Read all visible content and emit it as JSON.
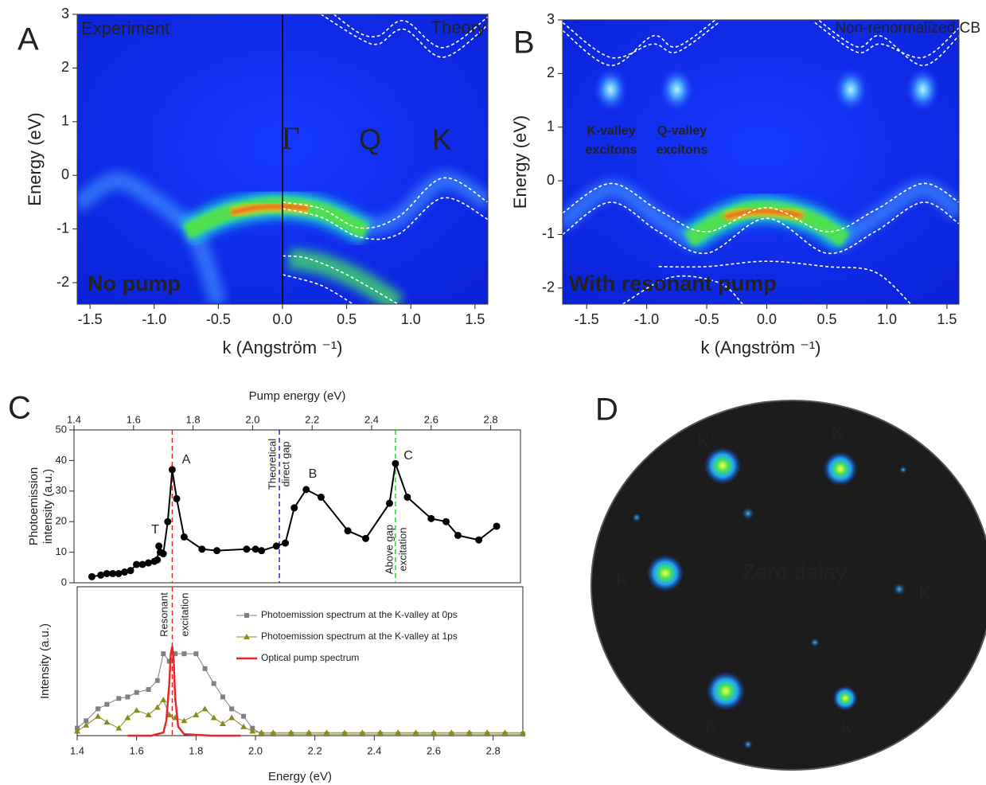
{
  "chart_data": [
    {
      "type": "image",
      "panel": "A",
      "xlabel": "k (Angström ⁻¹)",
      "ylabel": "Energy (eV)",
      "xlim": [
        -1.6,
        1.6
      ],
      "ylim": [
        -2.4,
        3
      ],
      "xticks": [
        -1.5,
        {
          "value": -1,
          "label": "-1.0"
        },
        -0.5,
        {
          "value": 0,
          "label": "0.0"
        },
        0.5,
        {
          "value": 1,
          "label": "1.0"
        },
        1.5
      ],
      "yticks": [
        -2,
        -1,
        0,
        1,
        2,
        3
      ],
      "annotations": [
        "Experiment",
        "Theory",
        "Γ",
        "Q",
        "K",
        "No pump"
      ]
    },
    {
      "type": "image",
      "panel": "B",
      "xlabel": "k (Angström ⁻¹)",
      "ylabel": "Energy (eV)",
      "xlim": [
        -1.7,
        1.6
      ],
      "ylim": [
        -2.3,
        3
      ],
      "xticks": [
        -1.5,
        {
          "value": -1,
          "label": "-1.0"
        },
        -0.5,
        {
          "value": 0,
          "label": "0.0"
        },
        0.5,
        {
          "value": 1,
          "label": "1.0"
        },
        1.5
      ],
      "yticks": [
        -2,
        -1,
        0,
        1,
        2,
        3
      ],
      "annotations": [
        "Non-renormalized CB",
        "K-valley",
        "excitons",
        "Q-valley",
        "excitons",
        "With resonant pump"
      ]
    },
    {
      "type": "line",
      "panel": "C",
      "xlabel": "Pump energy (eV)",
      "ylabel": [
        "Photoemission",
        "intensity (a.u.)"
      ],
      "xlim": [
        1.4,
        2.9
      ],
      "ylim": [
        0,
        50
      ],
      "xticks": [
        1.4,
        1.6,
        1.8,
        {
          "value": 2,
          "label": "2.0"
        },
        2.2,
        2.4,
        2.6,
        2.8
      ],
      "yticks": [
        0,
        10,
        20,
        30,
        40,
        50
      ],
      "series": [
        {
          "color": "#000000",
          "x": [
            1.46,
            1.49,
            1.51,
            1.53,
            1.55,
            1.57,
            1.59,
            1.61,
            1.63,
            1.65,
            1.67,
            1.68,
            1.685,
            1.69,
            1.7,
            1.715,
            1.73,
            1.745,
            1.77,
            1.83,
            1.88,
            1.98,
            2.01,
            2.03,
            2.08,
            2.11,
            2.14,
            2.18,
            2.23,
            2.32,
            2.38,
            2.46,
            2.48,
            2.52,
            2.6,
            2.65,
            2.69,
            2.76,
            2.82
          ],
          "values": [
            2,
            2.5,
            3,
            3,
            3,
            3.5,
            4,
            6,
            6,
            6.5,
            7,
            7.5,
            12,
            10,
            9.5,
            20,
            37,
            27.5,
            15,
            11,
            10.5,
            11,
            11,
            10.5,
            12,
            13,
            24.5,
            30.5,
            28,
            17,
            14.5,
            26,
            39,
            28,
            21,
            20,
            15.5,
            14,
            18.5
          ]
        }
      ],
      "point_labels": [
        "A",
        "B",
        "C",
        "T"
      ],
      "vlines": [
        {
          "x": 1.73,
          "color": "#e8262a"
        },
        {
          "x": 2.09,
          "color": "#2a2ad0",
          "label": [
            "Theoretical",
            "direct gap"
          ]
        },
        {
          "x": 2.48,
          "color": "#30d030",
          "label": [
            "Above gap",
            "excitation"
          ]
        }
      ]
    },
    {
      "type": "line",
      "xlabel": "Energy (eV)",
      "ylabel": "Intensity (a.u.)",
      "xlim": [
        1.4,
        2.9
      ],
      "ylim": [
        0,
        1
      ],
      "xticks": [
        1.4,
        1.6,
        1.8,
        {
          "value": 2,
          "label": "2.0"
        },
        2.2,
        2.4,
        2.6,
        2.8
      ],
      "vlines": [
        {
          "x": 1.72,
          "color": "#e8262a",
          "label": [
            "Resonant",
            "excitation"
          ]
        }
      ],
      "series": [
        {
          "name": "Photoemission spectrum at the K-valley at 0ps",
          "color": "#808080",
          "marker": "square",
          "x": [
            1.4,
            1.43,
            1.47,
            1.5,
            1.54,
            1.57,
            1.6,
            1.64,
            1.67,
            1.69,
            1.71,
            1.73,
            1.76,
            1.8,
            1.83,
            1.86,
            1.89,
            1.92,
            1.96,
            1.99,
            2.02,
            2.06,
            2.12,
            2.18,
            2.24,
            2.3,
            2.36,
            2.42,
            2.48,
            2.54,
            2.6,
            2.66,
            2.72,
            2.78,
            2.84,
            2.9
          ],
          "values": [
            0.05,
            0.1,
            0.18,
            0.21,
            0.25,
            0.26,
            0.29,
            0.31,
            0.37,
            0.55,
            0.5,
            0.55,
            0.55,
            0.55,
            0.45,
            0.35,
            0.26,
            0.18,
            0.13,
            0.05,
            0.01,
            0.01,
            0.01,
            0.01,
            0.01,
            0.01,
            0.01,
            0.01,
            0.01,
            0.01,
            0.01,
            0.01,
            0.01,
            0.01,
            0.01,
            0.01
          ]
        },
        {
          "name": "Photoemission spectrum at the K-valley at 1ps",
          "color": "#8a8a1a",
          "marker": "triangle",
          "x": [
            1.4,
            1.43,
            1.47,
            1.5,
            1.54,
            1.57,
            1.6,
            1.64,
            1.67,
            1.69,
            1.71,
            1.73,
            1.76,
            1.8,
            1.83,
            1.86,
            1.89,
            1.92,
            1.96,
            1.99,
            2.02,
            2.06,
            2.12,
            2.18,
            2.24,
            2.3,
            2.36,
            2.42,
            2.48,
            2.54,
            2.6,
            2.66,
            2.72,
            2.78,
            2.84,
            2.9
          ],
          "values": [
            0.03,
            0.07,
            0.13,
            0.09,
            0.05,
            0.12,
            0.17,
            0.14,
            0.19,
            0.24,
            0.14,
            0.12,
            0.1,
            0.14,
            0.18,
            0.12,
            0.08,
            0.12,
            0.06,
            0.03,
            0.02,
            0.02,
            0.02,
            0.02,
            0.02,
            0.02,
            0.02,
            0.02,
            0.02,
            0.02,
            0.02,
            0.02,
            0.02,
            0.02,
            0.02,
            0.02
          ]
        },
        {
          "name": "Optical pump spectrum",
          "color": "#e8262a",
          "marker": "none",
          "x": [
            1.57,
            1.65,
            1.69,
            1.7,
            1.71,
            1.715,
            1.72,
            1.725,
            1.73,
            1.74,
            1.76,
            1.85,
            1.95
          ],
          "values": [
            0,
            0,
            0.02,
            0.1,
            0.35,
            0.55,
            0.6,
            0.5,
            0.25,
            0.06,
            0.01,
            0,
            0
          ]
        }
      ]
    },
    {
      "type": "image",
      "panel": "D",
      "annotations": [
        "K’",
        "K",
        "K",
        "Zero delay",
        "K’",
        "K’",
        "K"
      ]
    }
  ]
}
